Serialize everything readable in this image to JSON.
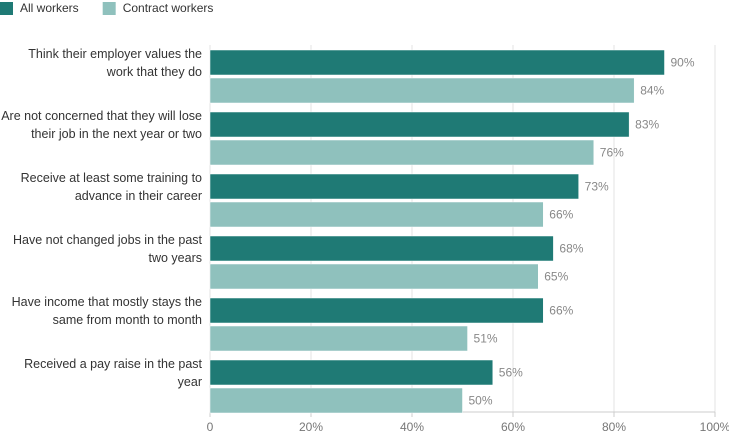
{
  "chart_data": {
    "type": "bar",
    "orientation": "horizontal",
    "categories": [
      "Think their employer values the work that they do",
      "Are not concerned that they will lose their job in the next year or two",
      "Receive at least some training to advance in their career",
      "Have not changed jobs in the past two years",
      "Have income that mostly stays the same from month to month",
      "Received a pay raise in the past year"
    ],
    "series": [
      {
        "name": "All workers",
        "color": "#1f7a75",
        "values": [
          90,
          83,
          73,
          68,
          66,
          56
        ],
        "value_labels": [
          "90%",
          "83%",
          "73%",
          "68%",
          "66%",
          "56%"
        ]
      },
      {
        "name": "Contract workers",
        "color": "#8fc1bd",
        "values": [
          84,
          76,
          66,
          65,
          51,
          50
        ],
        "value_labels": [
          "84%",
          "76%",
          "66%",
          "65%",
          "51%",
          "50%"
        ]
      }
    ],
    "xlim": [
      0,
      100
    ],
    "xticks": [
      0,
      {
        "value": 20,
        "label": "20%"
      },
      {
        "value": 40,
        "label": "40%"
      },
      {
        "value": 60,
        "label": "60%"
      },
      {
        "value": 80,
        "label": "80%"
      },
      {
        "value": 100,
        "label": "100%"
      }
    ],
    "grid": true,
    "legend": "top-left"
  }
}
